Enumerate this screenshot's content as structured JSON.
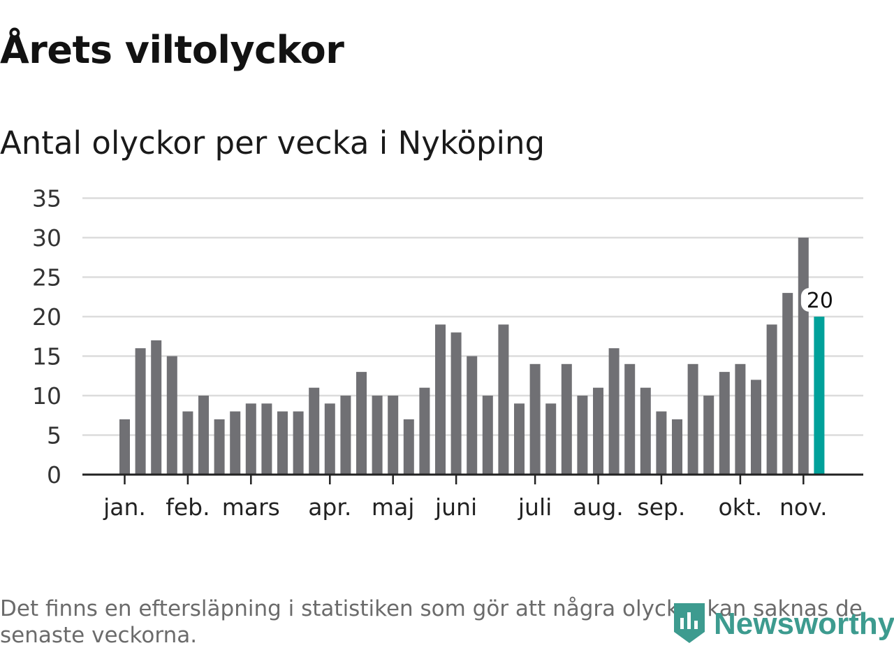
{
  "title": "Årets viltolyckor",
  "subtitle": "Antal olyckor per vecka i Nyköping",
  "footnote": "Det finns en eftersläpning i statistiken som gör att några olyckor kan saknas de senaste veckorna.",
  "brand": {
    "name": "Newsworthy",
    "icon": "newsworthy-logo-icon",
    "color": "#3d9b8f"
  },
  "chart_data": {
    "type": "bar",
    "title": "Årets viltolyckor",
    "subtitle": "Antal olyckor per vecka i Nyköping",
    "xlabel": "",
    "ylabel": "",
    "ylim": [
      0,
      35
    ],
    "yticks": [
      0,
      5,
      10,
      15,
      20,
      25,
      30,
      35
    ],
    "grid": true,
    "legend": "none",
    "x_unit": "week",
    "month_ticks": [
      {
        "label": "jan.",
        "week": 1
      },
      {
        "label": "feb.",
        "week": 5
      },
      {
        "label": "mars",
        "week": 9
      },
      {
        "label": "apr.",
        "week": 14
      },
      {
        "label": "maj",
        "week": 18
      },
      {
        "label": "juni",
        "week": 22
      },
      {
        "label": "juli",
        "week": 27
      },
      {
        "label": "aug.",
        "week": 31
      },
      {
        "label": "sep.",
        "week": 35
      },
      {
        "label": "okt.",
        "week": 40
      },
      {
        "label": "nov.",
        "week": 44
      }
    ],
    "weeks": [
      1,
      2,
      3,
      4,
      5,
      6,
      7,
      8,
      9,
      10,
      11,
      12,
      13,
      14,
      15,
      16,
      17,
      18,
      19,
      20,
      21,
      22,
      23,
      24,
      25,
      26,
      27,
      28,
      29,
      30,
      31,
      32,
      33,
      34,
      35,
      36,
      37,
      38,
      39,
      40,
      41,
      42,
      43,
      44,
      45
    ],
    "values": [
      7,
      16,
      17,
      15,
      8,
      10,
      7,
      8,
      9,
      9,
      8,
      8,
      11,
      9,
      10,
      13,
      10,
      10,
      7,
      11,
      19,
      18,
      15,
      10,
      19,
      9,
      14,
      9,
      14,
      10,
      11,
      16,
      14,
      11,
      8,
      7,
      14,
      10,
      13,
      14,
      12,
      19,
      23,
      30,
      20
    ],
    "bar_color": "#707074",
    "highlight": {
      "index": 44,
      "value": 20,
      "label": "20",
      "color": "#00a19a"
    }
  }
}
